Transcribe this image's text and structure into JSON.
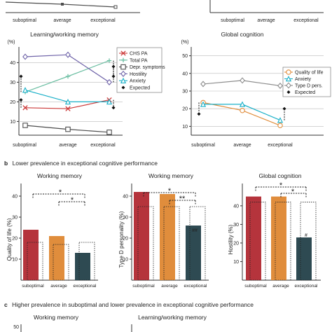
{
  "top_fragment": {
    "categories": [
      "suboptimal",
      "average",
      "exceptional"
    ]
  },
  "panel_a": {
    "learning": {
      "title": "Learning/working memory",
      "ylabel": "(%)",
      "yticks": [
        "10",
        "20",
        "30",
        "40"
      ],
      "legend": [
        "CHS PA",
        "Total PA",
        "Depr. symptoms",
        "Hostility",
        "Anxiety",
        "Expected"
      ]
    },
    "global": {
      "title": "Global cognition",
      "ylabel": "(%)",
      "yticks": [
        "10",
        "20",
        "30",
        "40",
        "50"
      ],
      "legend": [
        "Quality of life",
        "Anxiety",
        "Type D pers.",
        "Expected"
      ]
    }
  },
  "panel_b": {
    "letter": "b",
    "heading": "Lower prevalence in exceptional cognitive performance",
    "charts": [
      {
        "title": "Working memory",
        "ylabel": "Quality of life (%)",
        "yticks": [
          "10",
          "20",
          "30",
          "40"
        ]
      },
      {
        "title": "Working memory",
        "ylabel": "Type D personality (%)",
        "yticks": [
          "10",
          "20",
          "30",
          "40"
        ]
      },
      {
        "title": "Global cognition",
        "ylabel": "Hostility (%)",
        "yticks": [
          "10",
          "20",
          "30",
          "40"
        ]
      }
    ],
    "sig": [
      "*",
      "*",
      "*",
      "**",
      "*",
      "*"
    ],
    "annot": [
      "##",
      "#"
    ]
  },
  "panel_c": {
    "letter": "c",
    "heading": "Higher prevalence in suboptimal and lower prevalence in exceptional cognitive performance",
    "titles": [
      "Working memory",
      "Learning/working memory"
    ],
    "ytick": "50"
  },
  "colors": {
    "suboptimal": "#b5343c",
    "average": "#e08d3c",
    "exceptional": "#2e4a52",
    "chs_pa": "#cc3a3a",
    "total_pa": "#6dbfa3",
    "depr": "#4d4d4d",
    "hostility": "#6e62a8",
    "anxiety": "#19b0c8",
    "quality_of_life": "#e08d3c",
    "type_d": "#8c8c8c"
  },
  "chart_data": [
    {
      "type": "line",
      "title": "Learning/working memory",
      "ylabel": "(%)",
      "categories": [
        "suboptimal",
        "average",
        "exceptional"
      ],
      "ylim": [
        3,
        48
      ],
      "series": [
        {
          "name": "CHS PA",
          "values": [
            17,
            16.5,
            21
          ]
        },
        {
          "name": "Total PA",
          "values": [
            25,
            33,
            41
          ]
        },
        {
          "name": "Depr. symptoms",
          "values": [
            8,
            6,
            4.5
          ]
        },
        {
          "name": "Hostility",
          "values": [
            43,
            44,
            30
          ]
        },
        {
          "name": "Anxiety",
          "values": [
            26,
            20,
            20
          ]
        }
      ],
      "expected": [
        {
          "category": "suboptimal",
          "from": 25,
          "to": 33
        },
        {
          "category": "suboptimal",
          "from": 17,
          "to": 21
        },
        {
          "category": "exceptional",
          "from": 41,
          "to": 33
        },
        {
          "category": "exceptional",
          "from": 21,
          "to": 17
        },
        {
          "category": "exceptional",
          "from": 30,
          "to": 38
        }
      ]
    },
    {
      "type": "line",
      "title": "Global cognition",
      "ylabel": "(%)",
      "categories": [
        "suboptimal",
        "average",
        "exceptional"
      ],
      "ylim": [
        5,
        55
      ],
      "series": [
        {
          "name": "Quality of life",
          "values": [
            23.5,
            19,
            10.5
          ]
        },
        {
          "name": "Anxiety",
          "values": [
            22.5,
            22.5,
            13.5
          ]
        },
        {
          "name": "Type D pers.",
          "values": [
            34,
            36,
            33
          ]
        }
      ],
      "expected": [
        {
          "category": "suboptimal",
          "from": 23.5,
          "to": 17
        },
        {
          "category": "exceptional",
          "from": 13.5,
          "to": 20
        }
      ]
    },
    {
      "type": "bar",
      "title": "Working memory",
      "ylabel": "Quality of life (%)",
      "categories": [
        "suboptimal",
        "average",
        "exceptional"
      ],
      "values": [
        24,
        21,
        13
      ],
      "expected": [
        18,
        17,
        18
      ],
      "ylim": [
        0,
        46
      ]
    },
    {
      "type": "bar",
      "title": "Working memory",
      "ylabel": "Type D personality (%)",
      "categories": [
        "suboptimal",
        "average",
        "exceptional"
      ],
      "values": [
        42,
        41,
        26
      ],
      "expected": [
        35,
        35,
        35
      ],
      "ylim": [
        0,
        46
      ]
    },
    {
      "type": "bar",
      "title": "Global cognition",
      "ylabel": "Hostility (%)",
      "categories": [
        "suboptimal",
        "average",
        "exceptional"
      ],
      "values": [
        45,
        45,
        23
      ],
      "expected": [
        42,
        42,
        42
      ],
      "ylim": [
        0,
        52
      ]
    }
  ]
}
